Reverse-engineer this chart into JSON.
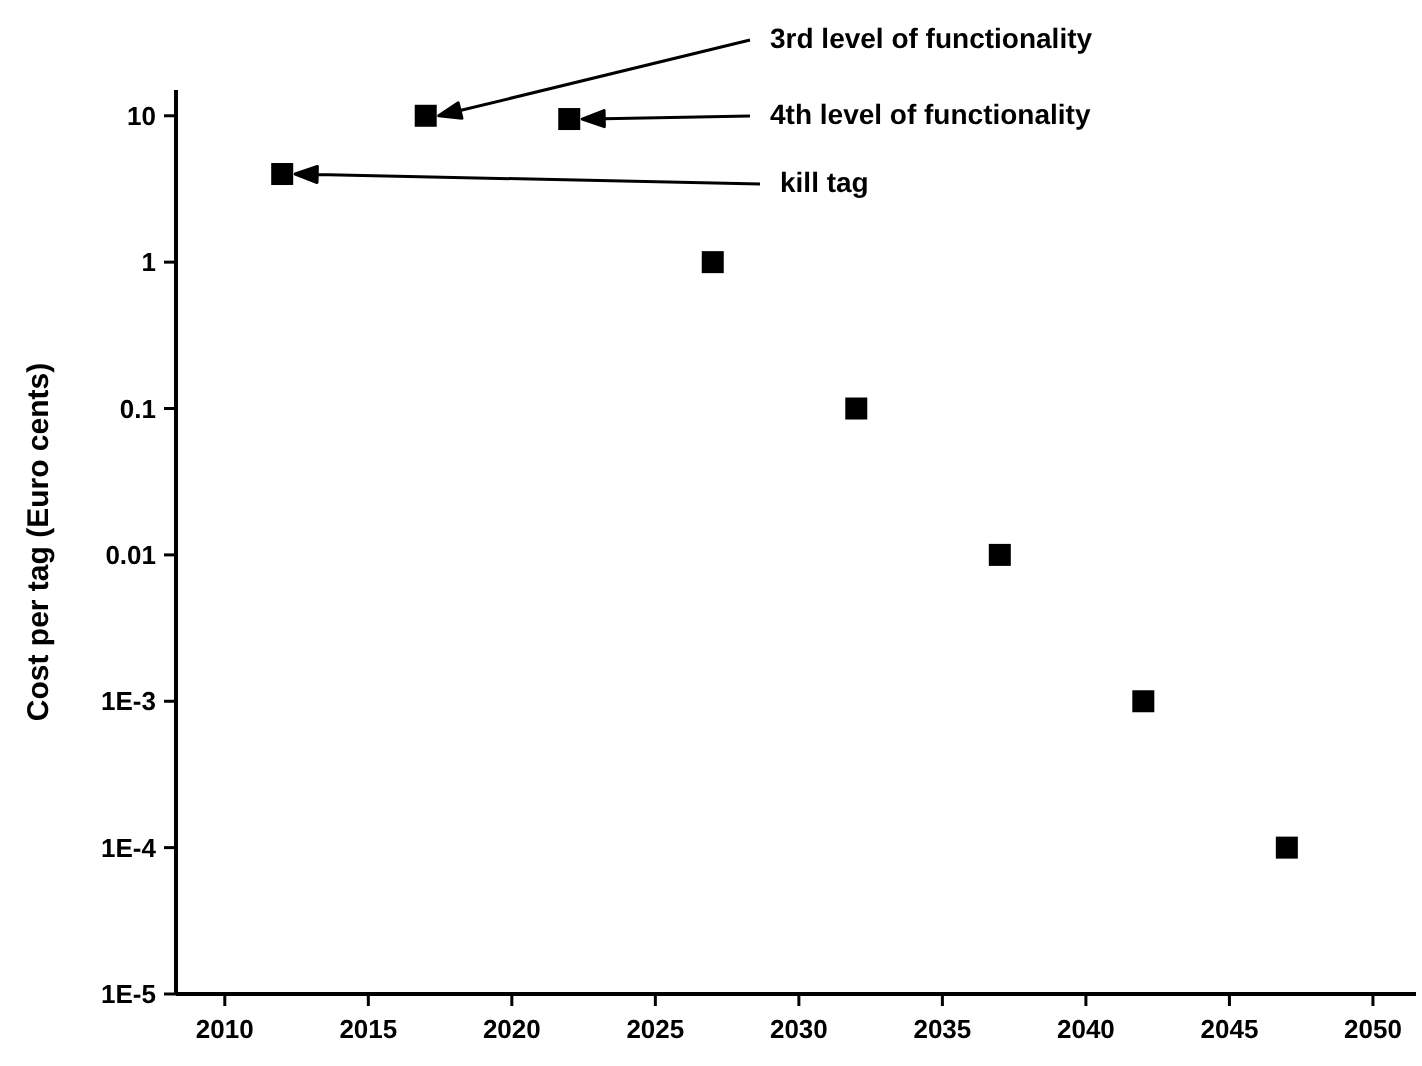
{
  "chart_data": {
    "type": "scatter",
    "ylabel": "Cost per tag (Euro cents)",
    "x": [
      2012,
      2017,
      2022,
      2027,
      2032,
      2037,
      2042,
      2047
    ],
    "series": [
      {
        "color": "#000000",
        "values": [
          4,
          10,
          9.5,
          1,
          0.1,
          0.01,
          0.001,
          0.0001
        ]
      }
    ],
    "marker": "square",
    "log": "y",
    "xlim": [
      2008.3,
      2051.5
    ],
    "xticks": [
      2010,
      2015,
      2020,
      2025,
      2030,
      2035,
      2040,
      2045,
      2050
    ],
    "ylim": [
      1e-05,
      15
    ],
    "yticks": [
      10,
      1,
      0.1,
      0.01,
      {
        "value": 0.001,
        "label": "1E-3"
      },
      {
        "value": 0.0001,
        "label": "1E-4"
      },
      {
        "value": 1e-05,
        "label": "1E-5"
      }
    ],
    "annotations": [
      "3rd level of functionality",
      "4th level of functionality",
      "kill tag"
    ],
    "grid": false
  }
}
